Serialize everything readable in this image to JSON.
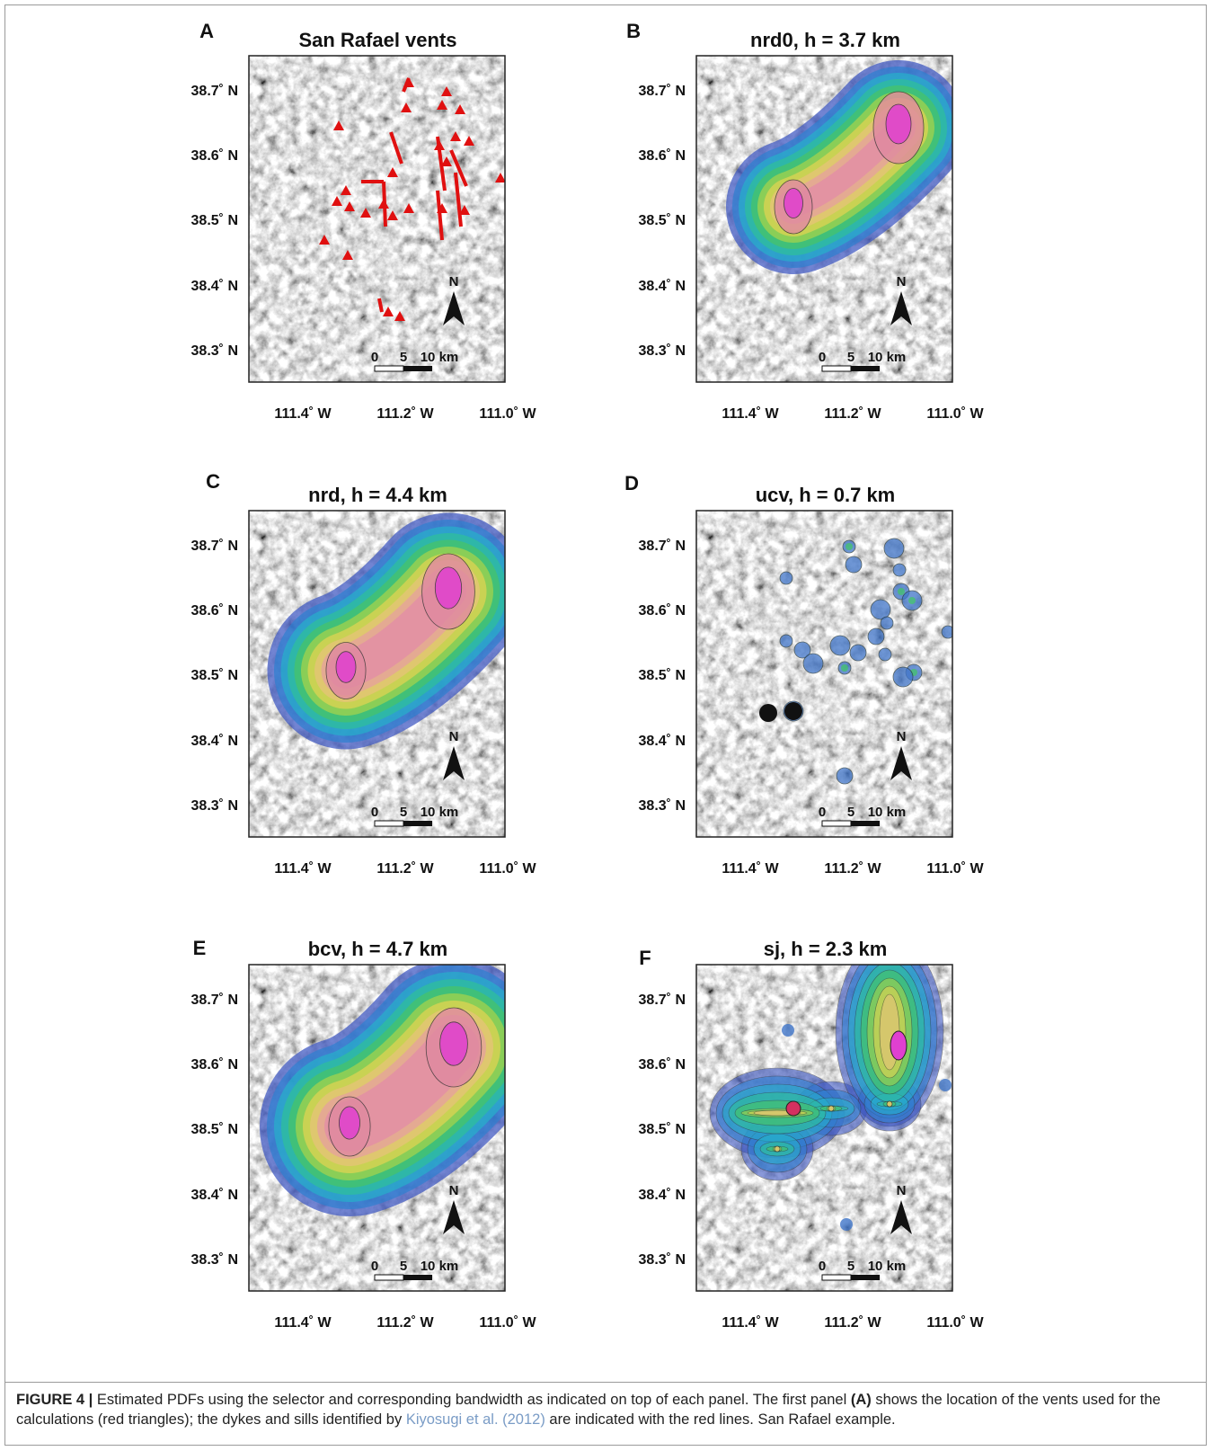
{
  "figure": {
    "panels": [
      {
        "letter": "A",
        "title": "San Rafael vents"
      },
      {
        "letter": "B",
        "title": "nrd0, h = 3.7 km"
      },
      {
        "letter": "C",
        "title": "nrd, h = 4.4 km"
      },
      {
        "letter": "D",
        "title": "ucv, h = 0.7 km"
      },
      {
        "letter": "E",
        "title": "bcv, h = 4.7 km"
      },
      {
        "letter": "F",
        "title": "sj, h = 2.3 km"
      }
    ],
    "y_tick_labels": [
      "38.7˚ N",
      "38.6˚ N",
      "38.5˚ N",
      "38.4˚ N",
      "38.3˚ N"
    ],
    "x_tick_labels": [
      "111.4˚ W",
      "111.2˚ W",
      "111.0˚ W"
    ],
    "scale_bar_labels": [
      "0",
      "5",
      "10 km"
    ],
    "north_label": "N",
    "caption": {
      "label": "FIGURE 4 |",
      "text_1": " Estimated PDFs using the selector and corresponding bandwidth as indicated on top of each panel. The first panel ",
      "panel_ref": "(A)",
      "text_2": " shows the location of the vents used for the calculations (red triangles); the dykes and sills identified by ",
      "citation": "Kiyosugi et al. (2012)",
      "text_3": " are indicated with the red lines. San Rafael example."
    }
  }
}
